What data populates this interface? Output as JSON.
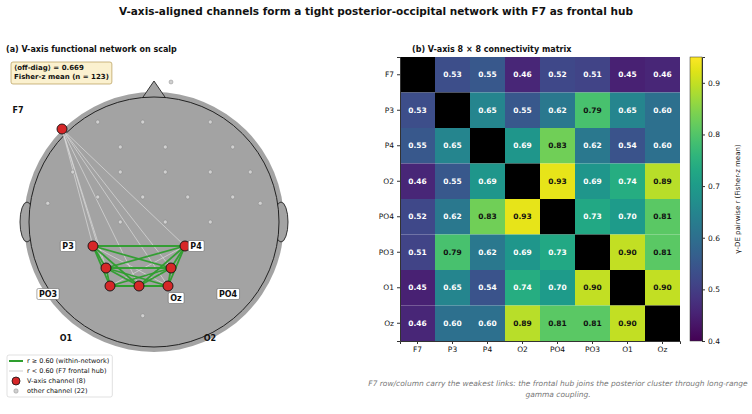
{
  "title": "V-axis-aligned channels form a tight posterior-occipital network with F7 as frontal hub",
  "note": "F7 row/column carry the weakest links: the frontal hub joins the posterior cluster through long-range gamma coupling.",
  "chart_data": [
    {
      "type": "network",
      "title": "(a)  V-axis functional network on scalp",
      "annotation": [
        "⟨off-diag⟩ = 0.669",
        "Fisher-z mean  (n = 123)"
      ],
      "threshold": 0.6,
      "nodes": [
        {
          "label": "F7",
          "x": -0.736,
          "y": 0.744,
          "label_x": -1.088,
          "label_y": 0.896
        },
        {
          "label": "P3",
          "x": -0.488,
          "y": -0.192,
          "label_x": -0.688,
          "label_y": -0.192
        },
        {
          "label": "P4",
          "x": 0.248,
          "y": -0.192,
          "label_x": 0.336,
          "label_y": -0.192
        },
        {
          "label": "O2",
          "x": 0.112,
          "y": -0.512,
          "label_x": 0.448,
          "label_y": -0.928
        },
        {
          "label": "PO4",
          "x": 0.136,
          "y": -0.368,
          "label_x": 0.592,
          "label_y": -0.576
        },
        {
          "label": "PO3",
          "x": -0.384,
          "y": -0.368,
          "label_x": -0.848,
          "label_y": -0.576
        },
        {
          "label": "O1",
          "x": -0.352,
          "y": -0.512,
          "label_x": -0.704,
          "label_y": -0.928
        },
        {
          "label": "Oz",
          "x": -0.12,
          "y": -0.512,
          "label_x": 0.176,
          "label_y": -0.608
        }
      ],
      "other_nodes": [
        {
          "x": 0.136,
          "y": 1.12
        },
        {
          "x": -0.45,
          "y": 0.8
        },
        {
          "x": -0.09,
          "y": 0.8
        },
        {
          "x": 0.45,
          "y": 0.8
        },
        {
          "x": -0.27,
          "y": 0.6
        },
        {
          "x": 0.09,
          "y": 0.6
        },
        {
          "x": 0.63,
          "y": 0.6
        },
        {
          "x": -0.65,
          "y": 0.4
        },
        {
          "x": -0.27,
          "y": 0.4
        },
        {
          "x": 0.09,
          "y": 0.4
        },
        {
          "x": 0.45,
          "y": 0.4
        },
        {
          "x": 0.77,
          "y": 0.4
        },
        {
          "x": -0.45,
          "y": 0.2
        },
        {
          "x": -0.09,
          "y": 0.2
        },
        {
          "x": 0.27,
          "y": 0.2
        },
        {
          "x": 0.63,
          "y": 0.2
        },
        {
          "x": -0.27,
          "y": 0.0
        },
        {
          "x": 0.09,
          "y": 0.0
        },
        {
          "x": 0.45,
          "y": 0.0
        },
        {
          "x": -0.85,
          "y": 0.15
        },
        {
          "x": 0.85,
          "y": 0.15
        },
        {
          "x": -0.09,
          "y": -0.75
        }
      ],
      "legend_entries": [
        "r ≥ 0.60  (within-network)",
        "r < 0.60  (F7 frontal hub)",
        "V-axis channel (8)",
        "other channel (22)"
      ],
      "legend": "lower left",
      "tick_labels": false
    },
    {
      "type": "heatmap",
      "title": "(b)  V-axis 8 × 8 connectivity matrix",
      "x_categories": [
        "F7",
        "P3",
        "P4",
        "O2",
        "PO4",
        "PO3",
        "O1",
        "Oz"
      ],
      "y_categories": [
        "F7",
        "P3",
        "P4",
        "O2",
        "PO4",
        "PO3",
        "O1",
        "Oz"
      ],
      "values": [
        [
          null,
          0.53,
          0.55,
          0.46,
          0.52,
          0.51,
          0.45,
          0.46
        ],
        [
          0.53,
          null,
          0.65,
          0.55,
          0.62,
          0.79,
          0.65,
          0.6
        ],
        [
          0.55,
          0.65,
          null,
          0.69,
          0.83,
          0.62,
          0.54,
          0.6
        ],
        [
          0.46,
          0.55,
          0.69,
          null,
          0.93,
          0.69,
          0.74,
          0.89
        ],
        [
          0.52,
          0.62,
          0.83,
          0.93,
          null,
          0.73,
          0.7,
          0.81
        ],
        [
          0.51,
          0.79,
          0.62,
          0.69,
          0.73,
          null,
          0.9,
          0.81
        ],
        [
          0.45,
          0.65,
          0.54,
          0.74,
          0.7,
          0.9,
          null,
          0.9
        ],
        [
          0.46,
          0.6,
          0.6,
          0.89,
          0.81,
          0.81,
          0.9,
          null
        ]
      ],
      "value_labels": [
        [
          null,
          "0.53",
          "0.55",
          "0.46",
          "0.52",
          "0.51",
          "0.45",
          "0.46"
        ],
        [
          "0.53",
          null,
          "0.65",
          "0.55",
          "0.62",
          "0.79",
          "0.65",
          "0.60"
        ],
        [
          "0.55",
          "0.65",
          null,
          "0.69",
          "0.83",
          "0.62",
          "0.54",
          "0.60"
        ],
        [
          "0.46",
          "0.55",
          "0.69",
          null,
          "0.93",
          "0.69",
          "0.74",
          "0.89"
        ],
        [
          "0.52",
          "0.62",
          "0.83",
          "0.93",
          null,
          "0.73",
          "0.70",
          "0.81"
        ],
        [
          "0.51",
          "0.79",
          "0.62",
          "0.69",
          "0.73",
          null,
          "0.90",
          "0.81"
        ],
        [
          "0.45",
          "0.65",
          "0.54",
          "0.74",
          "0.70",
          "0.90",
          null,
          "0.90"
        ],
        [
          "0.46",
          "0.60",
          "0.60",
          "0.89",
          "0.81",
          "0.81",
          "0.90",
          null
        ]
      ],
      "data_labels": true,
      "colorbar": {
        "label": "γ-DE pairwise  r  (Fisher-z mean)",
        "range": [
          0.4,
          0.95
        ],
        "ticks": [
          0.4,
          0.5,
          0.6,
          0.7,
          0.8,
          0.9
        ]
      }
    }
  ]
}
